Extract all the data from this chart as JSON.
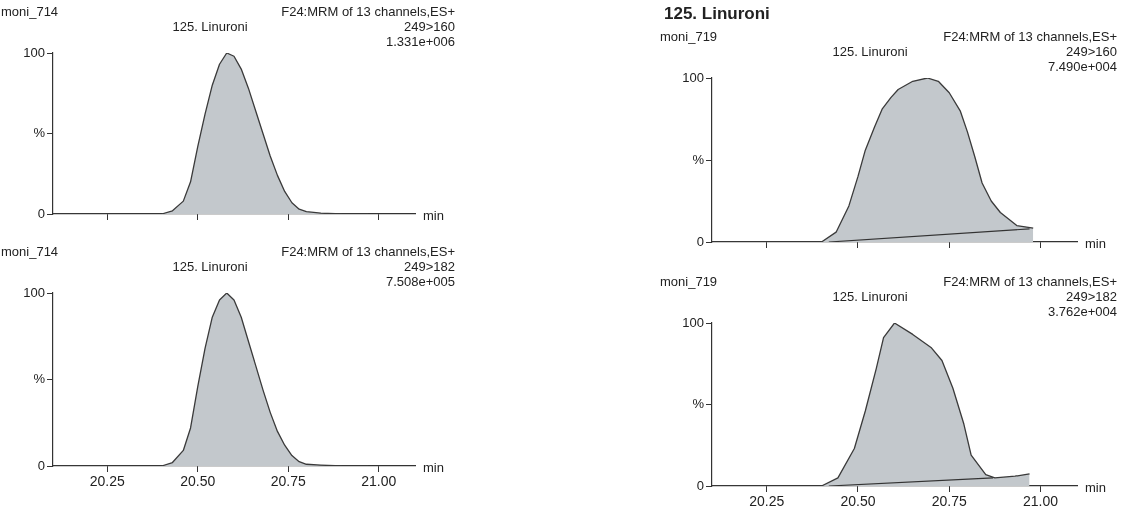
{
  "chart_data": [
    {
      "type": "area",
      "subtitle": "moni_714",
      "annotations": [
        "F24:MRM of 13 channels,ES+",
        "125. Linuroni",
        "249>160",
        "1.331e+006"
      ],
      "xlabel": "min",
      "xlim": [
        20.1,
        21.1
      ],
      "xticks": [
        {
          "value": 20.25,
          "label": null
        },
        {
          "value": 20.5,
          "label": null
        },
        {
          "value": 20.75,
          "label": null
        },
        {
          "value": 21,
          "label": null
        }
      ],
      "ylim": [
        0,
        100
      ],
      "yticks": [
        {
          "value": 0,
          "label": "0"
        },
        {
          "value": 50,
          "label": "%"
        },
        {
          "value": 100,
          "label": "100"
        }
      ],
      "tick_labels": "y",
      "series": [
        {
          "color": "#c3c8cc",
          "x": [
            20.1,
            20.4,
            20.43,
            20.46,
            20.48,
            20.5,
            20.52,
            20.54,
            20.56,
            20.58,
            20.6,
            20.62,
            20.64,
            20.66,
            20.68,
            20.7,
            20.72,
            20.74,
            20.76,
            20.78,
            20.8,
            20.84,
            20.9,
            20.97
          ],
          "values": [
            0,
            0,
            2,
            8,
            20,
            42,
            62,
            80,
            93,
            100,
            98,
            90,
            78,
            64,
            50,
            36,
            24,
            14,
            7,
            3,
            1.5,
            0.5,
            0,
            0
          ]
        }
      ]
    },
    {
      "type": "area",
      "subtitle": "moni_714",
      "annotations": [
        "F24:MRM of 13 channels,ES+",
        "125. Linuroni",
        "249>182",
        "7.508e+005"
      ],
      "xlabel": "min",
      "xlim": [
        20.1,
        21.1
      ],
      "xticks": [
        {
          "value": 20.25,
          "label": "20.25"
        },
        {
          "value": 20.5,
          "label": "20.50"
        },
        {
          "value": 20.75,
          "label": "20.75"
        },
        {
          "value": 21,
          "label": "21.00"
        }
      ],
      "ylim": [
        0,
        100
      ],
      "yticks": [
        {
          "value": 0,
          "label": "0"
        },
        {
          "value": 50,
          "label": "%"
        },
        {
          "value": 100,
          "label": "100"
        }
      ],
      "series": [
        {
          "color": "#c3c8cc",
          "x": [
            20.1,
            20.4,
            20.43,
            20.46,
            20.48,
            20.5,
            20.52,
            20.54,
            20.56,
            20.58,
            20.6,
            20.62,
            20.64,
            20.66,
            20.68,
            20.7,
            20.72,
            20.74,
            20.76,
            20.78,
            20.8,
            20.84,
            20.9,
            20.97
          ],
          "values": [
            0,
            0,
            2,
            9,
            22,
            46,
            68,
            86,
            96,
            100,
            96,
            86,
            72,
            58,
            44,
            31,
            20,
            12,
            6,
            2.5,
            1,
            0.5,
            0,
            0
          ]
        }
      ]
    },
    {
      "type": "area",
      "title": "125. Linuroni",
      "subtitle": "moni_719",
      "annotations": [
        "F24:MRM of 13 channels,ES+",
        "125. Linuroni",
        "249>160",
        "7.490e+004"
      ],
      "xlabel": "min",
      "xlim": [
        20.1,
        21.1
      ],
      "xticks": [
        {
          "value": 20.25,
          "label": null
        },
        {
          "value": 20.5,
          "label": null
        },
        {
          "value": 20.75,
          "label": null
        },
        {
          "value": 21,
          "label": null
        }
      ],
      "ylim": [
        0,
        100
      ],
      "yticks": [
        {
          "value": 0,
          "label": "0"
        },
        {
          "value": 50,
          "label": "%"
        },
        {
          "value": 100,
          "label": "100"
        }
      ],
      "tick_labels": "y",
      "series": [
        {
          "color": "#c3c8cc",
          "x": [
            20.1,
            20.4,
            20.44,
            20.475,
            20.5,
            20.52,
            20.545,
            20.566,
            20.59,
            20.61,
            20.65,
            20.69,
            20.72,
            20.75,
            20.78,
            20.8,
            20.82,
            20.84,
            20.865,
            20.89,
            20.935,
            20.98
          ],
          "values": [
            0,
            0,
            6,
            22,
            40,
            56,
            70,
            81,
            88,
            93,
            98,
            100,
            98,
            91,
            80,
            67,
            52,
            36,
            25,
            18,
            10,
            8.5
          ]
        },
        {
          "type": "line",
          "color": "#333333",
          "x": [
            20.42,
            20.97
          ],
          "values": [
            0,
            8
          ]
        }
      ]
    },
    {
      "type": "area",
      "subtitle": "moni_719",
      "annotations": [
        "F24:MRM of 13 channels,ES+",
        "125. Linuroni",
        "249>182",
        "3.762e+004"
      ],
      "xlabel": "min",
      "xlim": [
        20.1,
        21.1
      ],
      "xticks": [
        {
          "value": 20.25,
          "label": "20.25"
        },
        {
          "value": 20.5,
          "label": "20.50"
        },
        {
          "value": 20.75,
          "label": "20.75"
        },
        {
          "value": 21,
          "label": "21.00"
        }
      ],
      "ylim": [
        0,
        100
      ],
      "yticks": [
        {
          "value": 0,
          "label": "0"
        },
        {
          "value": 50,
          "label": "%"
        },
        {
          "value": 100,
          "label": "100"
        }
      ],
      "series": [
        {
          "color": "#c3c8cc",
          "x": [
            20.1,
            20.4,
            20.445,
            20.49,
            20.52,
            20.55,
            20.57,
            20.6,
            20.65,
            20.7,
            20.73,
            20.76,
            20.79,
            20.81,
            20.85,
            20.875,
            20.93,
            20.97
          ],
          "values": [
            0,
            0,
            5,
            23,
            46,
            72,
            91,
            100,
            93,
            85,
            77,
            60,
            38,
            19,
            7,
            5,
            6,
            7.5
          ]
        },
        {
          "type": "line",
          "color": "#333333",
          "x": [
            20.42,
            20.87
          ],
          "values": [
            0,
            5
          ]
        }
      ]
    }
  ]
}
